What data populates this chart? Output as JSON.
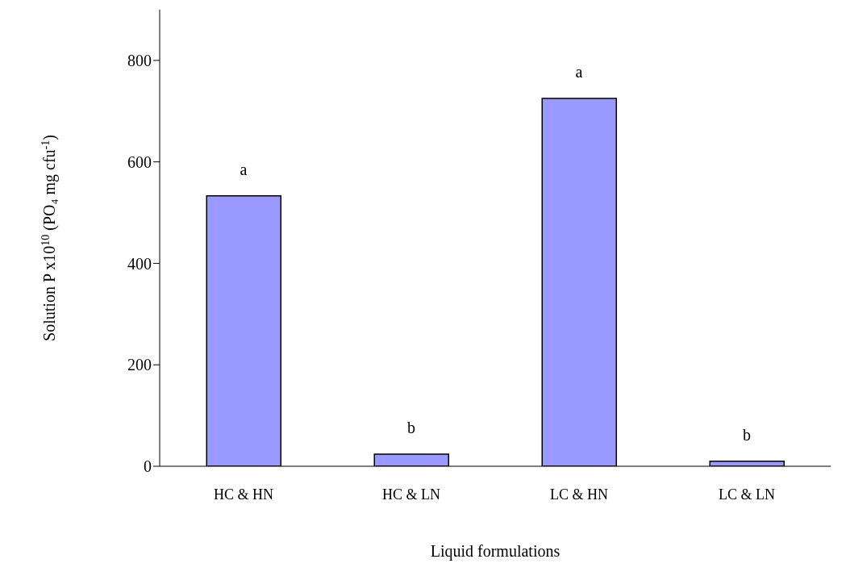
{
  "chart_data": {
    "type": "bar",
    "xlabel": "Liquid formulations",
    "ylabel": "Solution P x10$^{10}$ (PO₄ mg cfu$^{-1}$)",
    "categories": [
      "HC & HN",
      "HC & LN",
      "LC & HN",
      "LC & LN"
    ],
    "values": [
      533,
      24,
      725,
      10
    ],
    "color": "#9999ff",
    "ylim": [
      0,
      900
    ],
    "yticks": [
      0,
      200,
      400,
      600,
      800
    ],
    "grid": false,
    "legend": false,
    "annotations": [
      {
        "text": "a",
        "x": "HC & HN",
        "y": 533
      },
      {
        "text": "b",
        "x": "HC & LN",
        "y": 24
      },
      {
        "text": "a",
        "x": "LC & HN",
        "y": 725
      },
      {
        "text": "b",
        "x": "LC & LN",
        "y": 10
      }
    ]
  }
}
